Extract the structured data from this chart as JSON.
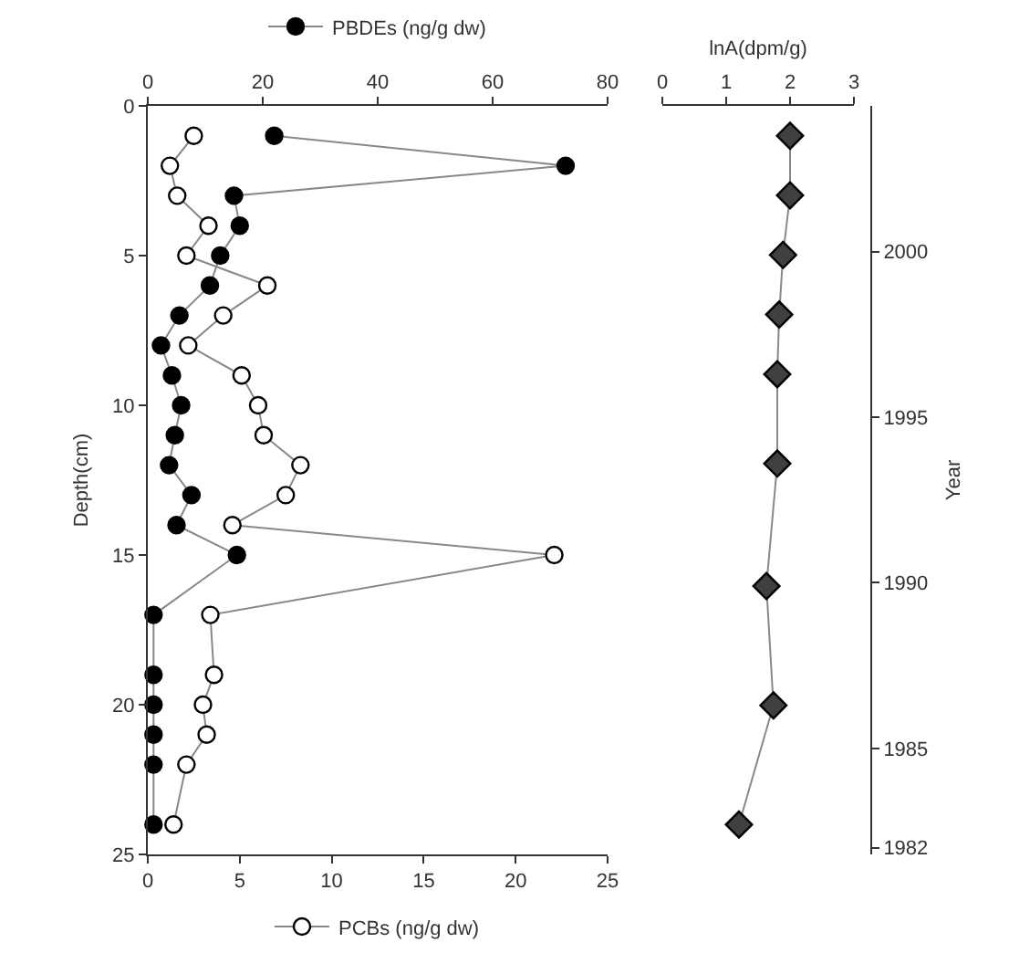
{
  "chart_data": [
    {
      "type": "line",
      "ylabel": "Depth(cm)",
      "ylim": [
        25,
        0
      ],
      "yticks": [
        0,
        5,
        10,
        15,
        20,
        25
      ],
      "xlim": [
        0,
        25
      ],
      "xticks": [
        0,
        5,
        10,
        15,
        20,
        25
      ],
      "x2lim": [
        0,
        80
      ],
      "x2ticks": [
        0,
        20,
        40,
        60,
        80
      ],
      "grid": false,
      "legend": "top",
      "marker": "circle",
      "line_style": "solid",
      "series": [
        {
          "name": "PBDEs (ng/g dw)",
          "color": "#000000",
          "axis": "x2",
          "x": [
            22,
            72.7,
            15,
            16,
            12.6,
            10.8,
            5.5,
            2.3,
            4.2,
            5.8,
            4.7,
            3.7,
            7.6,
            5,
            15.5,
            1,
            1,
            1,
            1,
            1,
            1
          ],
          "values": [
            1,
            2,
            3,
            4,
            5,
            6,
            7,
            8,
            9,
            10,
            11,
            12,
            13,
            14,
            15,
            17,
            19,
            20,
            21,
            22,
            24
          ]
        },
        {
          "name": "PCBs (ng/g dw)",
          "color": "#ffffff",
          "x": [
            2.5,
            1.2,
            1.6,
            3.3,
            2.1,
            6.5,
            4.1,
            2.2,
            5.1,
            6,
            6.3,
            8.3,
            7.5,
            4.6,
            22.1,
            3.4,
            3.6,
            3,
            3.2,
            2.1,
            1.4
          ],
          "values": [
            1,
            2,
            3,
            4,
            5,
            6,
            7,
            8,
            9,
            10,
            11,
            12,
            13,
            14,
            15,
            17,
            19,
            20,
            21,
            22,
            24
          ]
        }
      ]
    },
    {
      "type": "line",
      "xlabel": "lnA(dpm/g)",
      "ylabel": "Year",
      "xlim": [
        0,
        3
      ],
      "xticks": [
        0,
        1,
        2,
        3
      ],
      "ylim": [
        1981.8,
        2004.4
      ],
      "yticks": [
        2000,
        1995,
        1990,
        1985,
        1982
      ],
      "grid": false,
      "marker": "diamond",
      "line_style": "solid",
      "series": [
        {
          "color": "#404040",
          "x": [
            2,
            2,
            1.89,
            1.83,
            1.8,
            1.8,
            1.63,
            1.74,
            1.2
          ],
          "values": [
            2003.5,
            2001.7,
            1999.9,
            1998.1,
            1996.3,
            1993.6,
            1989.9,
            1986.3,
            1982.7
          ]
        }
      ]
    }
  ]
}
